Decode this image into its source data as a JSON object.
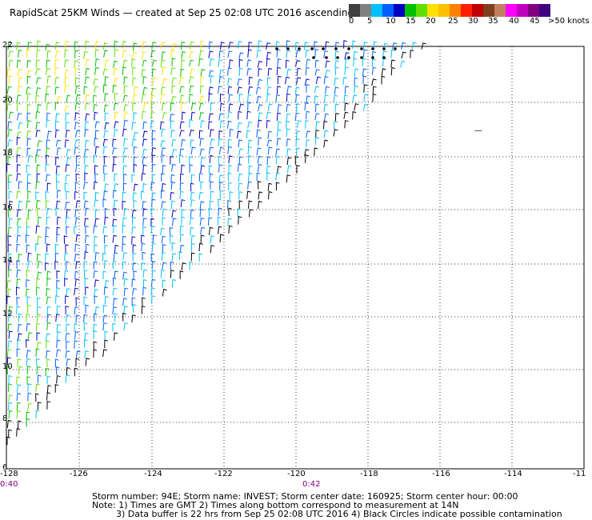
{
  "title": "RapidScat 25KM Winds — created at Sep 25 02:08 UTC 2016  ascending",
  "colorbar": {
    "colors": [
      "#404040",
      "#808080",
      "#00c0ff",
      "#0060ff",
      "#0000c0",
      "#00c000",
      "#60e000",
      "#ffe000",
      "#ffc000",
      "#ff8000",
      "#ff2000",
      "#c00000",
      "#804020",
      "#c08060",
      "#ff00ff",
      "#c000c0",
      "#800080",
      "#400080"
    ],
    "labels": [
      "0",
      "5",
      "10",
      "15",
      "20",
      "25",
      "30",
      "35",
      "40",
      "45",
      ">50 knots"
    ]
  },
  "map": {
    "lon_ticks": [
      "-128",
      "-126",
      "-124",
      "-122",
      "-120",
      "-118",
      "-116",
      "-114",
      "-11"
    ],
    "lat_ticks": [
      "22",
      "20",
      "18",
      "16",
      "14",
      "12",
      "10",
      "8",
      "6"
    ],
    "storm_marker": "—"
  },
  "time_labels": [
    "0:40",
    "0:42"
  ],
  "footer": {
    "line1": "Storm number: 94E;  Storm name: INVEST;  Storm center date: 160925;  Storm center hour: 00:00",
    "line2": "Note: 1) Times are GMT  2) Times along bottom correspond to measurement at 14N",
    "line3": "3) Data buffer is 22 hrs from Sep 25 02:08 UTC 2016  4) Black Circles indicate possible contamination"
  }
}
